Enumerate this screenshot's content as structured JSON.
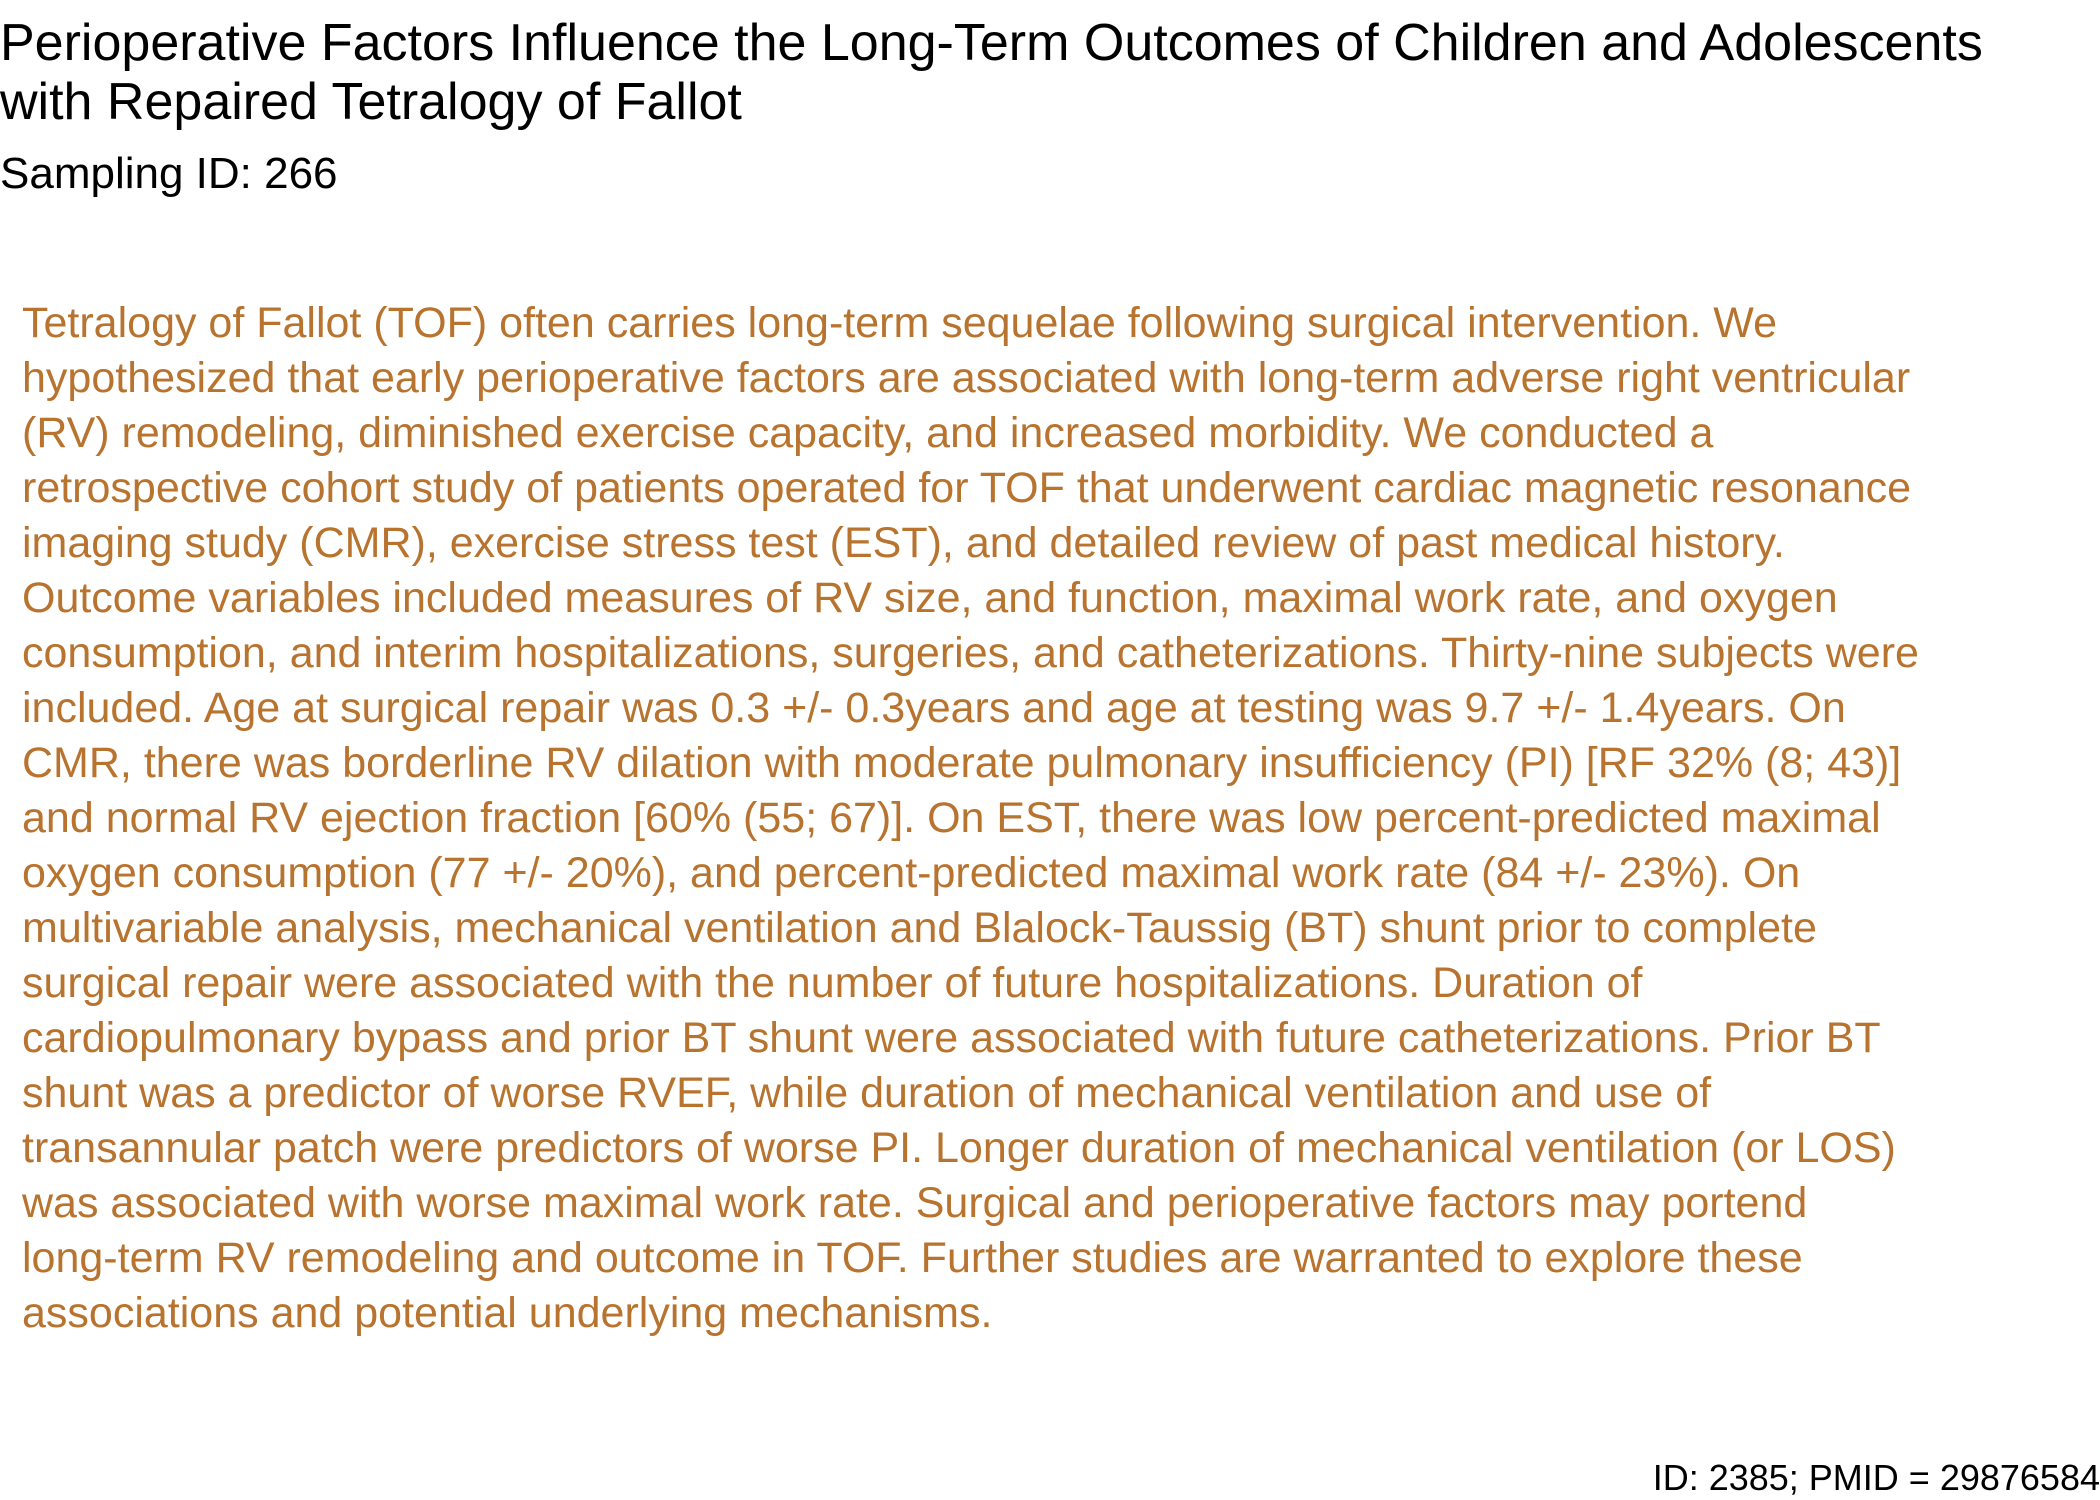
{
  "document": {
    "title": "Perioperative Factors Influence the Long-Term Outcomes of Children and Adolescents with Repaired Tetralogy of Fallot",
    "sampling_id": "Sampling ID: 266",
    "abstract": "Tetralogy of Fallot (TOF) often carries long-term sequelae following surgical intervention. We\nhypothesized that early perioperative factors are associated with long-term adverse right ventricular\n(RV) remodeling, diminished exercise capacity, and increased morbidity. We conducted a\nretrospective cohort study of patients operated for TOF that underwent cardiac magnetic resonance\nimaging study (CMR), exercise stress test (EST), and detailed review of past medical history.\nOutcome variables included measures of RV size, and function, maximal work rate, and oxygen\nconsumption, and interim hospitalizations, surgeries, and catheterizations. Thirty-nine subjects were\nincluded. Age at surgical repair was 0.3 +/- 0.3years and age at testing was 9.7 +/- 1.4years. On\nCMR, there was borderline RV dilation with moderate pulmonary insufficiency (PI) [RF 32% (8; 43)]\nand normal RV ejection fraction [60% (55; 67)]. On EST, there was low percent-predicted maximal\noxygen consumption (77 +/- 20%), and percent-predicted maximal work rate (84 +/- 23%). On\nmultivariable analysis, mechanical ventilation and Blalock-Taussig (BT) shunt prior to complete\nsurgical repair were associated with the number of future hospitalizations. Duration of\ncardiopulmonary bypass and prior BT shunt were associated with future catheterizations. Prior BT\nshunt was a predictor of worse RVEF, while duration of mechanical ventilation and use of\ntransannular patch were predictors of worse PI. Longer duration of mechanical ventilation (or LOS)\nwas associated with worse maximal work rate. Surgical and perioperative factors may portend\nlong-term RV remodeling and outcome in TOF. Further studies are warranted to explore these\nassociations and potential underlying mechanisms.",
    "footer_id": "ID: 2385; PMID = 29876584"
  },
  "colors": {
    "title_text": "#000000",
    "abstract_text": "#b8732e",
    "background": "#ffffff"
  }
}
